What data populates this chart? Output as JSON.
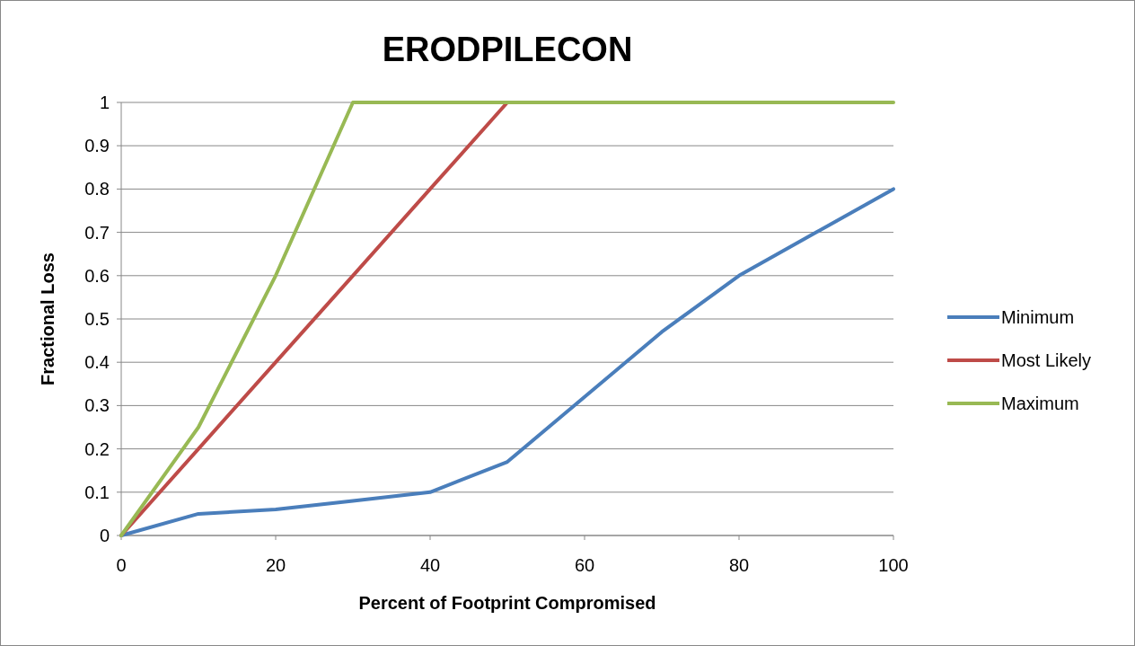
{
  "chart_data": {
    "type": "line",
    "title": "ERODPILECON",
    "xlabel": "Percent of Footprint Compromised",
    "ylabel": "Fractional Loss",
    "x": [
      0,
      10,
      20,
      30,
      40,
      50,
      60,
      70,
      80,
      90,
      100
    ],
    "series": [
      {
        "name": "Minimum",
        "color": "#4a7ebb",
        "values": [
          0,
          0.05,
          0.06,
          0.08,
          0.1,
          0.17,
          0.32,
          0.47,
          0.6,
          0.7,
          0.8
        ]
      },
      {
        "name": "Most Likely",
        "color": "#be4b48",
        "values": [
          0,
          0.2,
          0.4,
          0.6,
          0.8,
          1,
          null,
          null,
          null,
          null,
          null
        ]
      },
      {
        "name": "Maximum",
        "color": "#98b954",
        "values": [
          0,
          0.25,
          0.6,
          1,
          1,
          1,
          1,
          1,
          1,
          1,
          1
        ]
      }
    ],
    "xlim": [
      0,
      100
    ],
    "xticks": [
      0,
      20,
      40,
      60,
      80,
      100
    ],
    "ylim": [
      0,
      1
    ],
    "yticks": [
      0,
      0.1,
      0.2,
      0.3,
      0.4,
      0.5,
      0.6,
      0.7,
      0.8,
      0.9,
      1
    ],
    "grid": "y",
    "legend": "right",
    "marker": "none",
    "line_style": "solid"
  }
}
